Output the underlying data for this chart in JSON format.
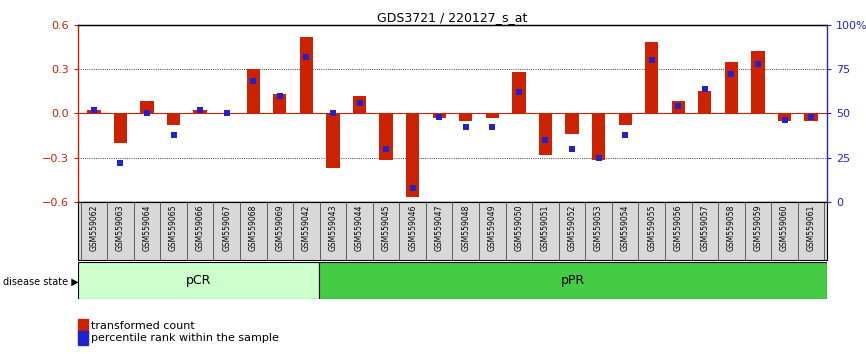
{
  "title": "GDS3721 / 220127_s_at",
  "samples": [
    "GSM559062",
    "GSM559063",
    "GSM559064",
    "GSM559065",
    "GSM559066",
    "GSM559067",
    "GSM559068",
    "GSM559069",
    "GSM559042",
    "GSM559043",
    "GSM559044",
    "GSM559045",
    "GSM559046",
    "GSM559047",
    "GSM559048",
    "GSM559049",
    "GSM559050",
    "GSM559051",
    "GSM559052",
    "GSM559053",
    "GSM559054",
    "GSM559055",
    "GSM559056",
    "GSM559057",
    "GSM559058",
    "GSM559059",
    "GSM559060",
    "GSM559061"
  ],
  "transformed_count": [
    0.02,
    -0.2,
    0.08,
    -0.08,
    0.02,
    0.0,
    0.3,
    0.13,
    0.52,
    -0.37,
    0.12,
    -0.32,
    -0.57,
    -0.03,
    -0.05,
    -0.03,
    0.28,
    -0.28,
    -0.14,
    -0.32,
    -0.08,
    0.48,
    0.08,
    0.15,
    0.35,
    0.42,
    -0.05,
    -0.05
  ],
  "percentile_rank": [
    52,
    22,
    50,
    38,
    52,
    50,
    68,
    60,
    82,
    50,
    56,
    30,
    8,
    48,
    42,
    42,
    62,
    35,
    30,
    25,
    38,
    80,
    54,
    64,
    72,
    78,
    46,
    48
  ],
  "pCR_count": 9,
  "pPR_count": 19,
  "ylim": [
    -0.6,
    0.6
  ],
  "yticks": [
    -0.6,
    -0.3,
    0.0,
    0.3,
    0.6
  ],
  "right_yticks": [
    0,
    25,
    50,
    75,
    100
  ],
  "bar_color": "#cc2200",
  "dot_color": "#2222cc",
  "pcr_fill": "#ccffcc",
  "ppr_fill": "#44cc44",
  "bg_color": "#ffffff",
  "zero_line_color": "#cc2200",
  "legend_bar_label": "transformed count",
  "legend_dot_label": "percentile rank within the sample",
  "disease_state_label": "disease state",
  "pcr_label": "pCR",
  "ppr_label": "pPR",
  "bar_width": 0.5
}
